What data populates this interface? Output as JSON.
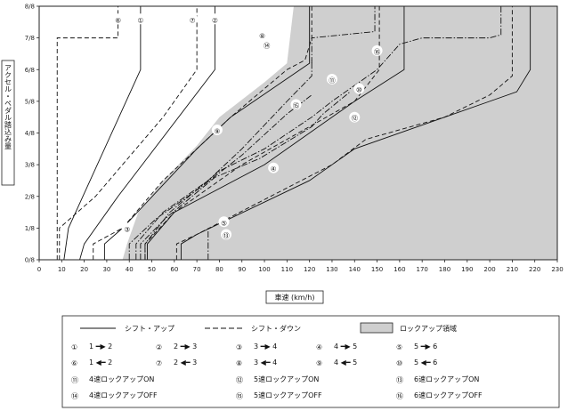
{
  "chart_data": {
    "type": "line",
    "xlabel": "車速 (km/h)",
    "ylabel": "アクセル・ペダル踏込み量",
    "x_ticks": [
      "0",
      "10",
      "20",
      "30",
      "40",
      "50",
      "60",
      "70",
      "80",
      "90",
      "100",
      "110",
      "120",
      "130",
      "140",
      "150",
      "160",
      "170",
      "180",
      "190",
      "200",
      "210",
      "220",
      "230"
    ],
    "y_ticks": [
      "0/8",
      "1/8",
      "2/8",
      "3/8",
      "4/8",
      "5/8",
      "6/8",
      "7/8",
      "8/8"
    ],
    "xlim": [
      0,
      230
    ],
    "ylim": [
      0,
      8
    ],
    "lockup_region_color": "#cfcfcf",
    "lockup_region": [
      [
        37,
        0
      ],
      [
        39,
        0.5
      ],
      [
        44,
        1.5
      ],
      [
        55,
        2.5
      ],
      [
        70,
        3.6
      ],
      [
        80,
        4.5
      ],
      [
        100,
        5.6
      ],
      [
        110,
        6.2
      ],
      [
        113,
        8
      ],
      [
        230,
        8
      ],
      [
        230,
        0
      ]
    ],
    "series": [
      {
        "id": "up12",
        "style": "solid",
        "points": [
          [
            11,
            0
          ],
          [
            13,
            1
          ],
          [
            45,
            6
          ],
          [
            45,
            8
          ]
        ]
      },
      {
        "id": "up23",
        "style": "solid",
        "points": [
          [
            18,
            0
          ],
          [
            20,
            0.5
          ],
          [
            35,
            2
          ],
          [
            78,
            6
          ],
          [
            78,
            8
          ]
        ]
      },
      {
        "id": "up34",
        "style": "solid",
        "points": [
          [
            29,
            0
          ],
          [
            29,
            0.5
          ],
          [
            37,
            1
          ],
          [
            70,
            3.5
          ],
          [
            85,
            4.5
          ],
          [
            120,
            6.2
          ],
          [
            120,
            8
          ]
        ]
      },
      {
        "id": "up45",
        "style": "solid",
        "points": [
          [
            48,
            0
          ],
          [
            48,
            0.5
          ],
          [
            60,
            1.5
          ],
          [
            100,
            3
          ],
          [
            120,
            4
          ],
          [
            140,
            5
          ],
          [
            162,
            6
          ],
          [
            162,
            8
          ]
        ]
      },
      {
        "id": "up56",
        "style": "solid",
        "points": [
          [
            63,
            0
          ],
          [
            63,
            0.5
          ],
          [
            70,
            0.8
          ],
          [
            120,
            2.5
          ],
          [
            140,
            3.5
          ],
          [
            180,
            4.5
          ],
          [
            200,
            5
          ],
          [
            212,
            5.3
          ],
          [
            218,
            6
          ],
          [
            218,
            8
          ]
        ]
      },
      {
        "id": "down21",
        "style": "dashed",
        "points": [
          [
            8,
            0
          ],
          [
            8,
            7
          ],
          [
            35,
            7
          ],
          [
            35,
            8
          ]
        ]
      },
      {
        "id": "down32",
        "style": "dashed",
        "points": [
          [
            9,
            0
          ],
          [
            9,
            1
          ],
          [
            25,
            2
          ],
          [
            55,
            4.5
          ],
          [
            70,
            6
          ],
          [
            70,
            7.5
          ],
          [
            70,
            8
          ]
        ]
      },
      {
        "id": "down43",
        "style": "dashed",
        "points": [
          [
            24,
            0
          ],
          [
            24,
            0.5
          ],
          [
            37,
            1
          ],
          [
            55,
            2.5
          ],
          [
            85,
            4.5
          ],
          [
            110,
            6
          ],
          [
            118,
            6.3
          ],
          [
            121,
            7
          ],
          [
            121,
            8
          ]
        ]
      },
      {
        "id": "down54",
        "style": "dashed",
        "points": [
          [
            47,
            0
          ],
          [
            47,
            0.5
          ],
          [
            60,
            1.5
          ],
          [
            90,
            3
          ],
          [
            120,
            4.2
          ],
          [
            140,
            5
          ],
          [
            151,
            6
          ],
          [
            151,
            7
          ],
          [
            151,
            8
          ]
        ]
      },
      {
        "id": "down65",
        "style": "dashed",
        "points": [
          [
            61,
            0
          ],
          [
            61,
            0.5
          ],
          [
            70,
            0.8
          ],
          [
            130,
            3
          ],
          [
            145,
            3.8
          ],
          [
            180,
            4.5
          ],
          [
            200,
            5.2
          ],
          [
            210,
            5.8
          ],
          [
            210,
            7
          ],
          [
            210,
            8
          ]
        ]
      },
      {
        "id": "lu4on",
        "style": "dashdot",
        "points": [
          [
            43,
            0
          ],
          [
            43,
            0.5
          ],
          [
            55,
            1.5
          ],
          [
            75,
            2.5
          ],
          [
            90,
            3.5
          ],
          [
            110,
            5
          ],
          [
            121,
            5.8
          ],
          [
            121,
            6.3
          ]
        ]
      },
      {
        "id": "lu4off",
        "style": "dashdot",
        "points": [
          [
            40,
            0
          ],
          [
            40,
            0.5
          ],
          [
            52,
            1.3
          ],
          [
            72,
            2.3
          ],
          [
            90,
            3.3
          ],
          [
            110,
            4.6
          ],
          [
            121,
            5.2
          ]
        ]
      },
      {
        "id": "lu5on",
        "style": "dashdot",
        "points": [
          [
            47,
            0
          ],
          [
            47,
            0.5
          ],
          [
            58,
            1.5
          ],
          [
            80,
            2.8
          ],
          [
            100,
            3.5
          ],
          [
            121,
            4.5
          ],
          [
            130,
            5
          ],
          [
            150,
            6
          ],
          [
            160,
            6.8
          ],
          [
            170,
            7
          ],
          [
            200,
            7
          ],
          [
            205,
            7.1
          ],
          [
            205,
            8
          ]
        ]
      },
      {
        "id": "lu5off",
        "style": "dashdot",
        "points": [
          [
            45,
            0
          ],
          [
            45,
            0.5
          ],
          [
            56,
            1.3
          ],
          [
            78,
            2.6
          ],
          [
            98,
            3.2
          ],
          [
            121,
            4.2
          ],
          [
            126,
            4.6
          ],
          [
            138,
            5.3
          ]
        ]
      },
      {
        "id": "lu6on",
        "style": "dashdot",
        "points": [
          [
            75,
            0
          ],
          [
            75,
            0.5
          ],
          [
            75,
            1
          ]
        ]
      },
      {
        "id": "lu6off",
        "style": "dashdot",
        "points": [
          [
            121,
            6.2
          ],
          [
            121,
            7
          ],
          [
            149,
            7.2
          ],
          [
            149,
            8
          ]
        ]
      }
    ],
    "callouts": [
      {
        "num": "⑥",
        "x": 35,
        "y": 7.6
      },
      {
        "num": "①",
        "x": 45,
        "y": 7.6
      },
      {
        "num": "⑦",
        "x": 68,
        "y": 7.6
      },
      {
        "num": "②",
        "x": 78,
        "y": 7.6
      },
      {
        "num": "⑧",
        "x": 99,
        "y": 7.1
      },
      {
        "num": "⑭",
        "x": 101,
        "y": 6.8
      },
      {
        "num": "⑯",
        "x": 150,
        "y": 6.6
      },
      {
        "num": "⑪",
        "x": 130,
        "y": 5.7
      },
      {
        "num": "⑩",
        "x": 142,
        "y": 5.4
      },
      {
        "num": "⑮",
        "x": 114,
        "y": 4.9
      },
      {
        "num": "⑫",
        "x": 140,
        "y": 4.5
      },
      {
        "num": "⑨",
        "x": 79,
        "y": 4.1
      },
      {
        "num": "④",
        "x": 104,
        "y": 2.9
      },
      {
        "num": "③",
        "x": 39,
        "y": 1.0
      },
      {
        "num": "⑤",
        "x": 82,
        "y": 1.2
      },
      {
        "num": "⑬",
        "x": 83,
        "y": 0.8
      }
    ]
  },
  "legend": {
    "line_up": "シフト・アップ",
    "line_down": "シフト・ダウン",
    "lockup_area": "ロックアップ領域",
    "rows": [
      [
        {
          "num": "①",
          "text": "1 ━▶ 2"
        },
        {
          "num": "②",
          "text": "2 ━▶ 3"
        },
        {
          "num": "③",
          "text": "3 ━▶ 4"
        },
        {
          "num": "④",
          "text": "4 ━▶ 5"
        },
        {
          "num": "⑤",
          "text": "5 ━▶ 6"
        }
      ],
      [
        {
          "num": "⑥",
          "text": "1 ◀━ 2"
        },
        {
          "num": "⑦",
          "text": "2 ◀━ 3"
        },
        {
          "num": "⑧",
          "text": "3 ◀━ 4"
        },
        {
          "num": "⑨",
          "text": "4 ◀━ 5"
        },
        {
          "num": "⑩",
          "text": "5 ◀━ 6"
        }
      ],
      [
        {
          "num": "⑪",
          "text": "4速ロックアップON"
        },
        {
          "num": "⑫",
          "text": "5速ロックアップON"
        },
        {
          "num": "⑬",
          "text": "6速ロックアップON"
        }
      ],
      [
        {
          "num": "⑭",
          "text": "4速ロックアップOFF"
        },
        {
          "num": "⑮",
          "text": "5速ロックアップOFF"
        },
        {
          "num": "⑯",
          "text": "6速ロックアップOFF"
        }
      ]
    ]
  }
}
